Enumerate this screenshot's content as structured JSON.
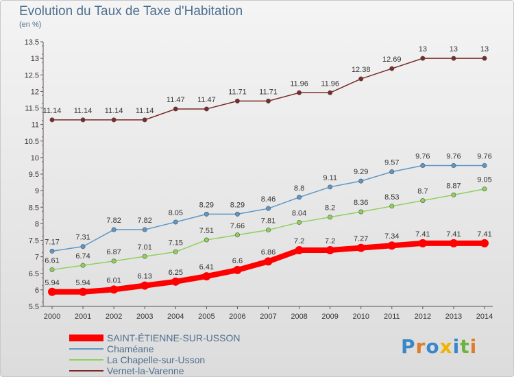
{
  "title": "Evolution du Taux de Taxe d'Habitation",
  "unit_label": "(en %)",
  "logo": {
    "text": "Proxiti",
    "letters": [
      {
        "ch": "P",
        "color": "#3a87c8"
      },
      {
        "ch": "r",
        "color": "#e07b2a"
      },
      {
        "ch": "o",
        "color": "#3a87c8"
      },
      {
        "ch": "x",
        "color": "#f0b400"
      },
      {
        "ch": "i",
        "color": "#3a87c8"
      },
      {
        "ch": "t",
        "color": "#6ab33f"
      },
      {
        "ch": "i",
        "color": "#e07b2a"
      }
    ]
  },
  "chart_data": {
    "type": "line",
    "title": "Evolution du Taux de Taxe d'Habitation",
    "ylabel": "(en %)",
    "xlabel": "",
    "x": [
      "2000",
      "2001",
      "2002",
      "2003",
      "2004",
      "2005",
      "2006",
      "2007",
      "2008",
      "2009",
      "2010",
      "2011",
      "2012",
      "2013",
      "2014"
    ],
    "ylim": [
      5.5,
      13.5
    ],
    "yticks": [
      "5.5",
      "6",
      "6.5",
      "7",
      "7.5",
      "8",
      "8.5",
      "9",
      "9.5",
      "10",
      "10.5",
      "11",
      "11.5",
      "12",
      "12.5",
      "13",
      "13.5"
    ],
    "grid": false,
    "legend_position": "bottom-left",
    "series": [
      {
        "name": "SAINT-ÉTIENNE-SUR-USSON",
        "color": "#ff0000",
        "emphasis": true,
        "values": [
          5.94,
          5.94,
          6.01,
          6.13,
          6.25,
          6.41,
          6.6,
          6.86,
          7.2,
          7.2,
          7.27,
          7.34,
          7.41,
          7.41,
          7.41
        ],
        "labels": [
          "5.94",
          "5.94",
          "6.01",
          "6.13",
          "6.25",
          "6.41",
          "6.6",
          "6.86",
          "7.2",
          "7.2",
          "7.27",
          "7.34",
          "7.41",
          "7.41",
          "7.41"
        ]
      },
      {
        "name": "Chaméane",
        "color": "#5b97c9",
        "emphasis": false,
        "values": [
          7.17,
          7.31,
          7.82,
          7.82,
          8.05,
          8.29,
          8.29,
          8.46,
          8.8,
          9.11,
          9.29,
          9.57,
          9.76,
          9.76,
          9.76
        ],
        "labels": [
          "7.17",
          "7.31",
          "7.82",
          "7.82",
          "8.05",
          "8.29",
          "8.29",
          "8.46",
          "8.8",
          "9.11",
          "9.29",
          "9.57",
          "9.76",
          "9.76",
          "9.76"
        ]
      },
      {
        "name": "La Chapelle-sur-Usson",
        "color": "#8fd05a",
        "emphasis": false,
        "values": [
          6.61,
          6.74,
          6.87,
          7.01,
          7.15,
          7.51,
          7.66,
          7.81,
          8.04,
          8.2,
          8.36,
          8.53,
          8.7,
          8.87,
          9.05
        ],
        "labels": [
          "6.61",
          "6.74",
          "6.87",
          "7.01",
          "7.15",
          "7.51",
          "7.66",
          "7.81",
          "8.04",
          "8.2",
          "8.36",
          "8.53",
          "8.7",
          "8.87",
          "9.05"
        ]
      },
      {
        "name": "Vernet-la-Varenne",
        "color": "#7a2a2a",
        "emphasis": false,
        "values": [
          11.14,
          11.14,
          11.14,
          11.14,
          11.47,
          11.47,
          11.71,
          11.71,
          11.96,
          11.96,
          12.38,
          12.69,
          13,
          13,
          13
        ],
        "labels": [
          "11.14",
          "11.14",
          "11.14",
          "11.14",
          "11.47",
          "11.47",
          "11.71",
          "11.71",
          "11.96",
          "11.96",
          "12.38",
          "12.69",
          "13",
          "13",
          "13"
        ]
      }
    ]
  }
}
